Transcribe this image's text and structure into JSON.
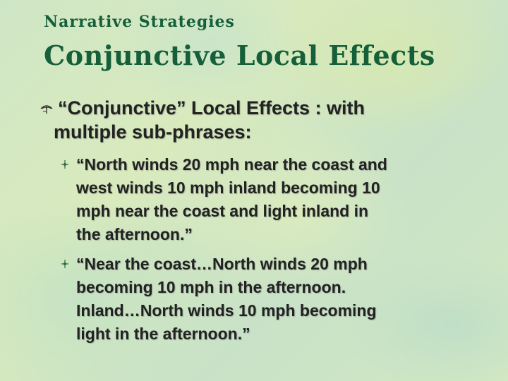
{
  "slide": {
    "subtitle": "Narrative Strategies",
    "title": "Conjunctive Local Effects",
    "main_bullet": {
      "icon": "palm-tree-icon",
      "line1": "“Conjunctive” Local Effects : with",
      "line2": "multiple sub-phrases:"
    },
    "sub_bullets": [
      {
        "icon": "fleur-icon",
        "lines": [
          "“North winds 20 mph near the coast and",
          "west winds 10 mph inland becoming 10",
          "mph near the coast and light inland in",
          "the afternoon.”"
        ]
      },
      {
        "icon": "fleur-icon",
        "lines": [
          "“Near the coast…North winds 20 mph",
          "becoming 10 mph in the afternoon.",
          "Inland…North winds 10 mph becoming",
          "light in the afternoon.”"
        ]
      }
    ],
    "colors": {
      "title": "#15603a",
      "body": "#222222"
    }
  }
}
